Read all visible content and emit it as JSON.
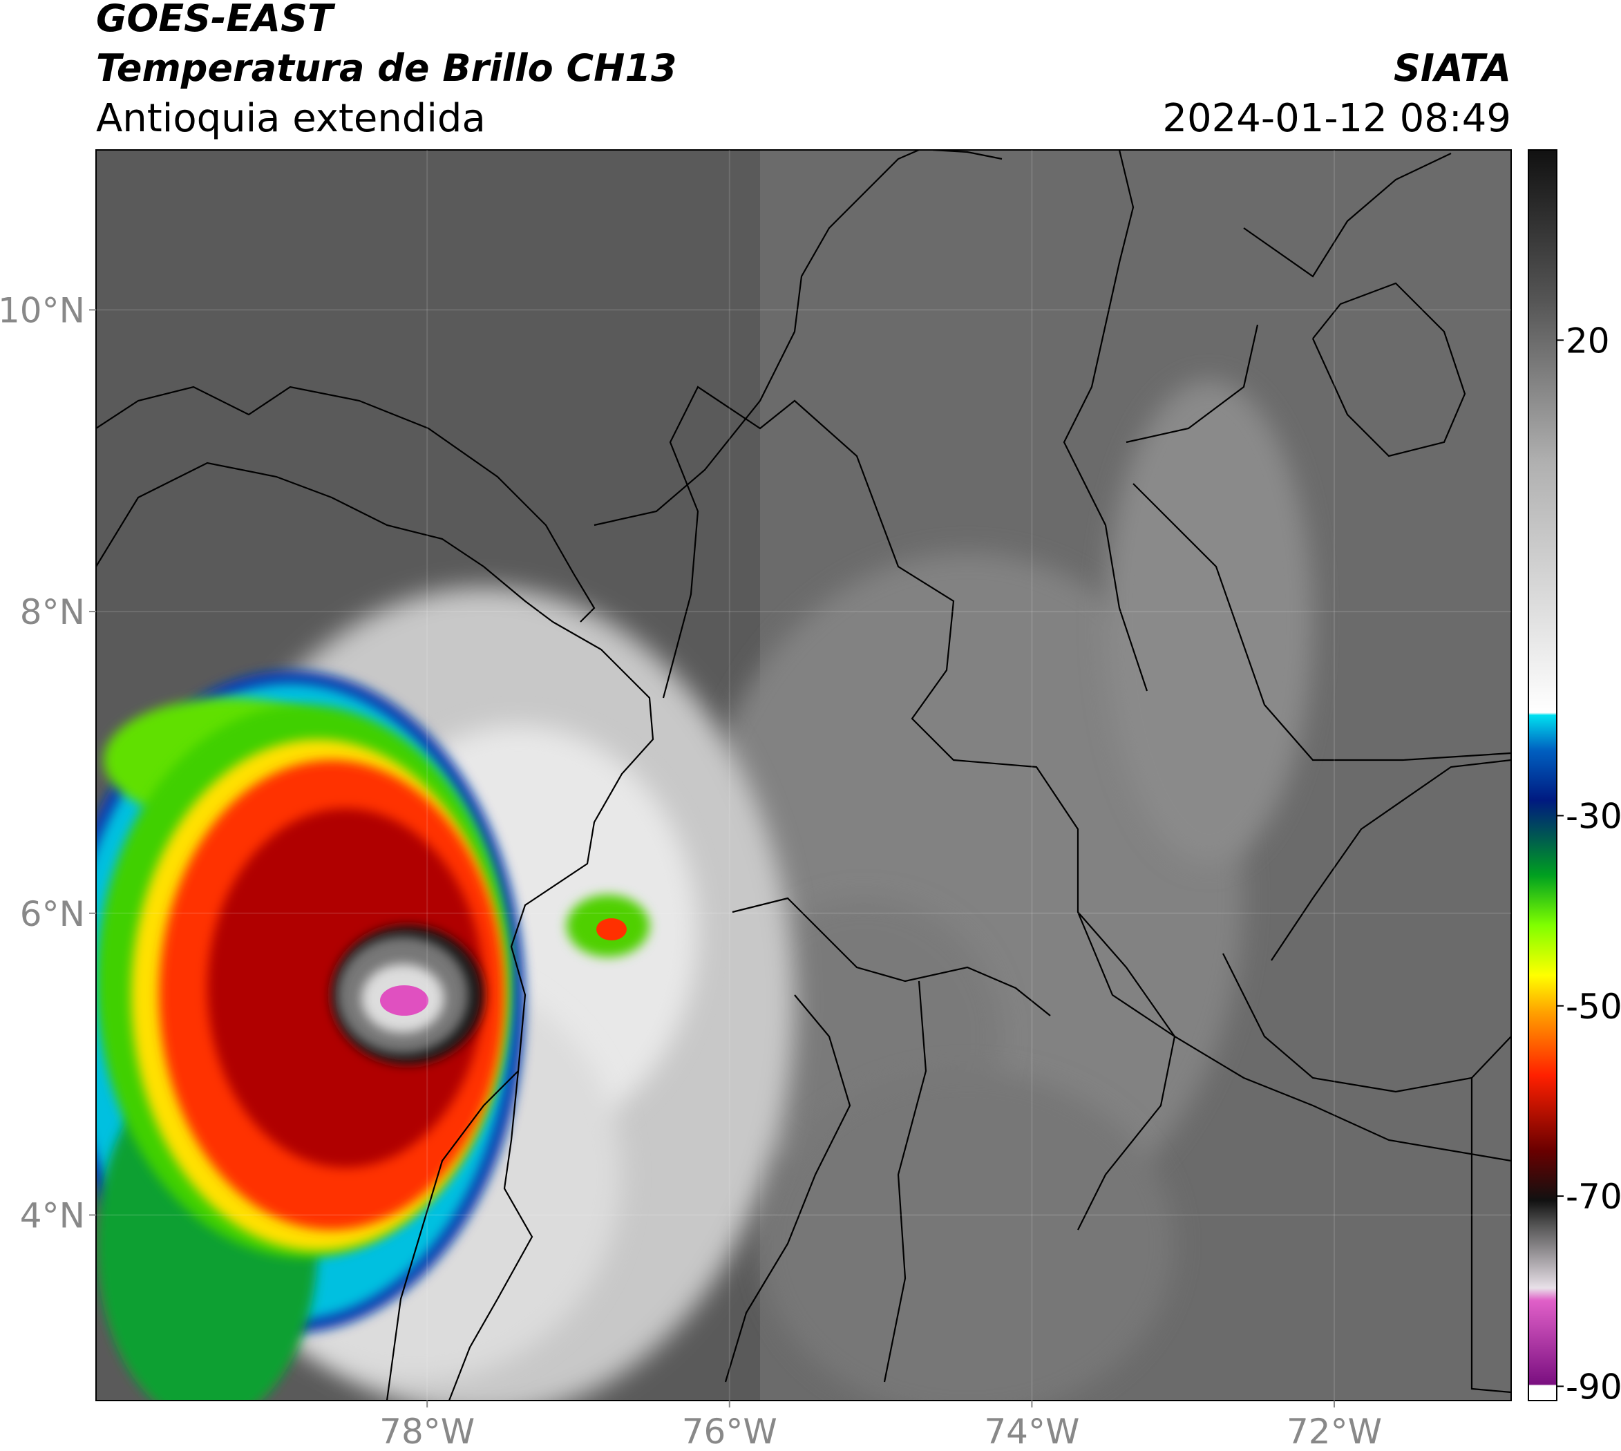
{
  "header": {
    "satellite": "GOES-EAST",
    "product": "Temperatura de Brillo CH13",
    "region": "Antioquia extendida",
    "source": "SIATA",
    "datetime": "2024-01-12 08:49"
  },
  "chart_data": {
    "type": "map",
    "xlim": [
      -80.19,
      -70.83
    ],
    "ylim": [
      2.77,
      11.06
    ],
    "xticks": [
      {
        "value": -78,
        "label": "78°W"
      },
      {
        "value": -76,
        "label": "76°W"
      },
      {
        "value": -74,
        "label": "74°W"
      },
      {
        "value": -72,
        "label": "72°W"
      }
    ],
    "yticks": [
      {
        "value": 4,
        "label": "4°N"
      },
      {
        "value": 6,
        "label": "6°N"
      },
      {
        "value": 8,
        "label": "8°N"
      },
      {
        "value": 10,
        "label": "10°N"
      }
    ],
    "colorbar": {
      "lim": [
        -91.5,
        40
      ],
      "ticks": [
        -90,
        -70,
        -50,
        -30,
        20
      ]
    }
  }
}
